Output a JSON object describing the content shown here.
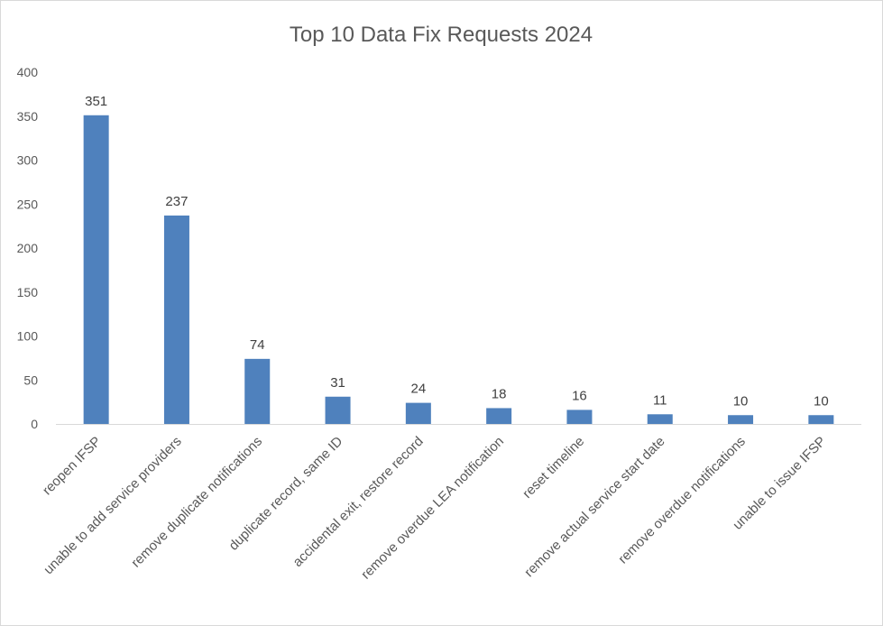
{
  "chart_data": {
    "type": "bar",
    "title": "Top 10 Data Fix Requests 2024",
    "xlabel": "",
    "ylabel": "",
    "ylim": [
      0,
      400
    ],
    "yticks": [
      0,
      50,
      100,
      150,
      200,
      250,
      300,
      350,
      400
    ],
    "grid": false,
    "legend": "none",
    "bar_color": "#4f81bd",
    "categories": [
      "reopen IFSP",
      "unable to add service providers",
      "remove duplicate notifications",
      "duplicate record, same ID",
      "accidental exit, restore record",
      "remove overdue LEA notification",
      "reset timeline",
      "remove actual service start date",
      "remove overdue notifications",
      "unable to issue IFSP"
    ],
    "values": [
      351,
      237,
      74,
      31,
      24,
      18,
      16,
      11,
      10,
      10
    ]
  }
}
